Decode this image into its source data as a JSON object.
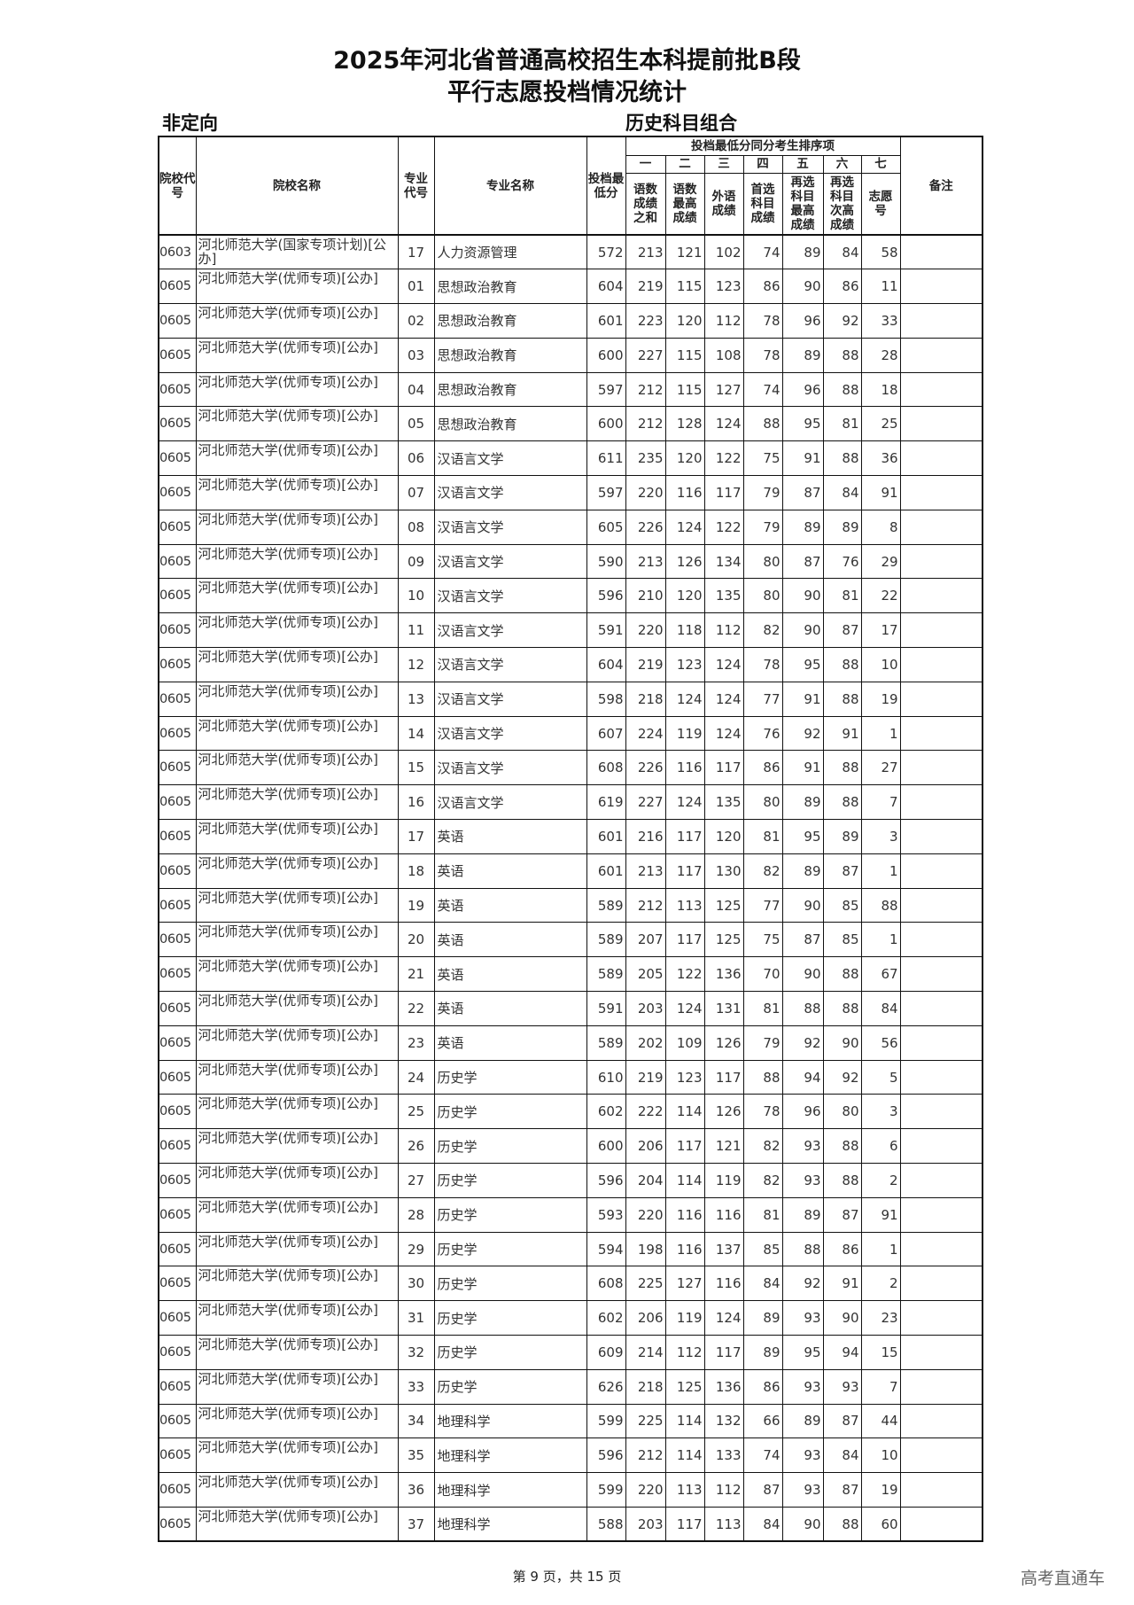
{
  "title_line1": "2025年河北省普通高校招生本科提前批B段",
  "title_line2": "平行志愿投档情况统计",
  "subtitle_left": "非定向",
  "subtitle_right": "历史科目组合",
  "headers": {
    "school_code": "院校代号",
    "school_name": "院校名称",
    "major_code": "专业代号",
    "major_name": "专业名称",
    "min_score": "投档最低分",
    "tie_break_group": "投档最低分同分考生排序项",
    "order": [
      "一",
      "二",
      "三",
      "四",
      "五",
      "六",
      "七"
    ],
    "tie_break": [
      "语数成绩之和",
      "语数最高成绩",
      "外语成绩",
      "首选科目成绩",
      "再选科目最高成绩",
      "再选科目次高成绩",
      "志愿号"
    ],
    "remarks": "备注"
  },
  "rows": [
    [
      "0603",
      "河北师范大学(国家专项计划)[公办]",
      "17",
      "人力资源管理",
      "572",
      "213",
      "121",
      "102",
      "74",
      "89",
      "84",
      "58",
      ""
    ],
    [
      "0605",
      "河北师范大学(优师专项)[公办]",
      "01",
      "思想政治教育",
      "604",
      "219",
      "115",
      "123",
      "86",
      "90",
      "86",
      "11",
      ""
    ],
    [
      "0605",
      "河北师范大学(优师专项)[公办]",
      "02",
      "思想政治教育",
      "601",
      "223",
      "120",
      "112",
      "78",
      "96",
      "92",
      "33",
      ""
    ],
    [
      "0605",
      "河北师范大学(优师专项)[公办]",
      "03",
      "思想政治教育",
      "600",
      "227",
      "115",
      "108",
      "78",
      "89",
      "88",
      "28",
      ""
    ],
    [
      "0605",
      "河北师范大学(优师专项)[公办]",
      "04",
      "思想政治教育",
      "597",
      "212",
      "115",
      "127",
      "74",
      "96",
      "88",
      "18",
      ""
    ],
    [
      "0605",
      "河北师范大学(优师专项)[公办]",
      "05",
      "思想政治教育",
      "600",
      "212",
      "128",
      "124",
      "88",
      "95",
      "81",
      "25",
      ""
    ],
    [
      "0605",
      "河北师范大学(优师专项)[公办]",
      "06",
      "汉语言文学",
      "611",
      "235",
      "120",
      "122",
      "75",
      "91",
      "88",
      "36",
      ""
    ],
    [
      "0605",
      "河北师范大学(优师专项)[公办]",
      "07",
      "汉语言文学",
      "597",
      "220",
      "116",
      "117",
      "79",
      "87",
      "84",
      "91",
      ""
    ],
    [
      "0605",
      "河北师范大学(优师专项)[公办]",
      "08",
      "汉语言文学",
      "605",
      "226",
      "124",
      "122",
      "79",
      "89",
      "89",
      "8",
      ""
    ],
    [
      "0605",
      "河北师范大学(优师专项)[公办]",
      "09",
      "汉语言文学",
      "590",
      "213",
      "126",
      "134",
      "80",
      "87",
      "76",
      "29",
      ""
    ],
    [
      "0605",
      "河北师范大学(优师专项)[公办]",
      "10",
      "汉语言文学",
      "596",
      "210",
      "120",
      "135",
      "80",
      "90",
      "81",
      "22",
      ""
    ],
    [
      "0605",
      "河北师范大学(优师专项)[公办]",
      "11",
      "汉语言文学",
      "591",
      "220",
      "118",
      "112",
      "82",
      "90",
      "87",
      "17",
      ""
    ],
    [
      "0605",
      "河北师范大学(优师专项)[公办]",
      "12",
      "汉语言文学",
      "604",
      "219",
      "123",
      "124",
      "78",
      "95",
      "88",
      "10",
      ""
    ],
    [
      "0605",
      "河北师范大学(优师专项)[公办]",
      "13",
      "汉语言文学",
      "598",
      "218",
      "124",
      "124",
      "77",
      "91",
      "88",
      "19",
      ""
    ],
    [
      "0605",
      "河北师范大学(优师专项)[公办]",
      "14",
      "汉语言文学",
      "607",
      "224",
      "119",
      "124",
      "76",
      "92",
      "91",
      "1",
      ""
    ],
    [
      "0605",
      "河北师范大学(优师专项)[公办]",
      "15",
      "汉语言文学",
      "608",
      "226",
      "116",
      "117",
      "86",
      "91",
      "88",
      "27",
      ""
    ],
    [
      "0605",
      "河北师范大学(优师专项)[公办]",
      "16",
      "汉语言文学",
      "619",
      "227",
      "124",
      "135",
      "80",
      "89",
      "88",
      "7",
      ""
    ],
    [
      "0605",
      "河北师范大学(优师专项)[公办]",
      "17",
      "英语",
      "601",
      "216",
      "117",
      "120",
      "81",
      "95",
      "89",
      "3",
      ""
    ],
    [
      "0605",
      "河北师范大学(优师专项)[公办]",
      "18",
      "英语",
      "601",
      "213",
      "117",
      "130",
      "82",
      "89",
      "87",
      "1",
      ""
    ],
    [
      "0605",
      "河北师范大学(优师专项)[公办]",
      "19",
      "英语",
      "589",
      "212",
      "113",
      "125",
      "77",
      "90",
      "85",
      "88",
      ""
    ],
    [
      "0605",
      "河北师范大学(优师专项)[公办]",
      "20",
      "英语",
      "589",
      "207",
      "117",
      "125",
      "75",
      "87",
      "85",
      "1",
      ""
    ],
    [
      "0605",
      "河北师范大学(优师专项)[公办]",
      "21",
      "英语",
      "589",
      "205",
      "122",
      "136",
      "70",
      "90",
      "88",
      "67",
      ""
    ],
    [
      "0605",
      "河北师范大学(优师专项)[公办]",
      "22",
      "英语",
      "591",
      "203",
      "124",
      "131",
      "81",
      "88",
      "88",
      "84",
      ""
    ],
    [
      "0605",
      "河北师范大学(优师专项)[公办]",
      "23",
      "英语",
      "589",
      "202",
      "109",
      "126",
      "79",
      "92",
      "90",
      "56",
      ""
    ],
    [
      "0605",
      "河北师范大学(优师专项)[公办]",
      "24",
      "历史学",
      "610",
      "219",
      "123",
      "117",
      "88",
      "94",
      "92",
      "5",
      ""
    ],
    [
      "0605",
      "河北师范大学(优师专项)[公办]",
      "25",
      "历史学",
      "602",
      "222",
      "114",
      "126",
      "78",
      "96",
      "80",
      "3",
      ""
    ],
    [
      "0605",
      "河北师范大学(优师专项)[公办]",
      "26",
      "历史学",
      "600",
      "206",
      "117",
      "121",
      "82",
      "93",
      "88",
      "6",
      ""
    ],
    [
      "0605",
      "河北师范大学(优师专项)[公办]",
      "27",
      "历史学",
      "596",
      "204",
      "114",
      "119",
      "82",
      "93",
      "88",
      "2",
      ""
    ],
    [
      "0605",
      "河北师范大学(优师专项)[公办]",
      "28",
      "历史学",
      "593",
      "220",
      "116",
      "116",
      "81",
      "89",
      "87",
      "91",
      ""
    ],
    [
      "0605",
      "河北师范大学(优师专项)[公办]",
      "29",
      "历史学",
      "594",
      "198",
      "116",
      "137",
      "85",
      "88",
      "86",
      "1",
      ""
    ],
    [
      "0605",
      "河北师范大学(优师专项)[公办]",
      "30",
      "历史学",
      "608",
      "225",
      "127",
      "116",
      "84",
      "92",
      "91",
      "2",
      ""
    ],
    [
      "0605",
      "河北师范大学(优师专项)[公办]",
      "31",
      "历史学",
      "602",
      "206",
      "119",
      "124",
      "89",
      "93",
      "90",
      "23",
      ""
    ],
    [
      "0605",
      "河北师范大学(优师专项)[公办]",
      "32",
      "历史学",
      "609",
      "214",
      "112",
      "117",
      "89",
      "95",
      "94",
      "15",
      ""
    ],
    [
      "0605",
      "河北师范大学(优师专项)[公办]",
      "33",
      "历史学",
      "626",
      "218",
      "125",
      "136",
      "86",
      "93",
      "93",
      "7",
      ""
    ],
    [
      "0605",
      "河北师范大学(优师专项)[公办]",
      "34",
      "地理科学",
      "599",
      "225",
      "114",
      "132",
      "66",
      "89",
      "87",
      "44",
      ""
    ],
    [
      "0605",
      "河北师范大学(优师专项)[公办]",
      "35",
      "地理科学",
      "596",
      "212",
      "114",
      "133",
      "74",
      "93",
      "84",
      "10",
      ""
    ],
    [
      "0605",
      "河北师范大学(优师专项)[公办]",
      "36",
      "地理科学",
      "599",
      "220",
      "113",
      "112",
      "87",
      "93",
      "87",
      "19",
      ""
    ],
    [
      "0605",
      "河北师范大学(优师专项)[公办]",
      "37",
      "地理科学",
      "588",
      "203",
      "117",
      "113",
      "84",
      "90",
      "88",
      "60",
      ""
    ]
  ],
  "footer": "第 9 页，共 15 页",
  "watermark": "高考直通车"
}
